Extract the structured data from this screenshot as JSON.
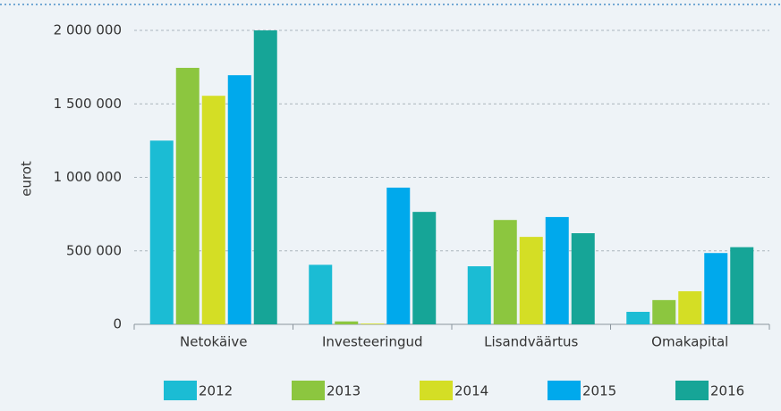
{
  "chart_data": {
    "type": "bar",
    "y_label": "eurot",
    "categories": [
      "Netokäive",
      "Investeeringud",
      "Lisandväärtus",
      "Omakapital"
    ],
    "series": [
      {
        "name": "2012",
        "color": "#1bbcd4",
        "values": [
          1250000,
          405000,
          395000,
          85000
        ]
      },
      {
        "name": "2013",
        "color": "#8cc63f",
        "values": [
          1745000,
          20000,
          710000,
          165000
        ]
      },
      {
        "name": "2014",
        "color": "#d4de25",
        "values": [
          1555000,
          5000,
          595000,
          225000
        ]
      },
      {
        "name": "2015",
        "color": "#00a9ec",
        "values": [
          1695000,
          930000,
          730000,
          485000
        ]
      },
      {
        "name": "2016",
        "color": "#16a597",
        "values": [
          2000000,
          765000,
          620000,
          525000
        ]
      }
    ],
    "ylim": [
      0,
      2000000
    ],
    "yticks": [
      0,
      {
        "value": 500000,
        "label": "500 000"
      },
      {
        "value": 1000000,
        "label": "1 000 000"
      },
      {
        "value": 1500000,
        "label": "1 500 000"
      },
      {
        "value": 2000000,
        "label": "2 000 000"
      }
    ],
    "grid": true,
    "legend": "bottom"
  }
}
